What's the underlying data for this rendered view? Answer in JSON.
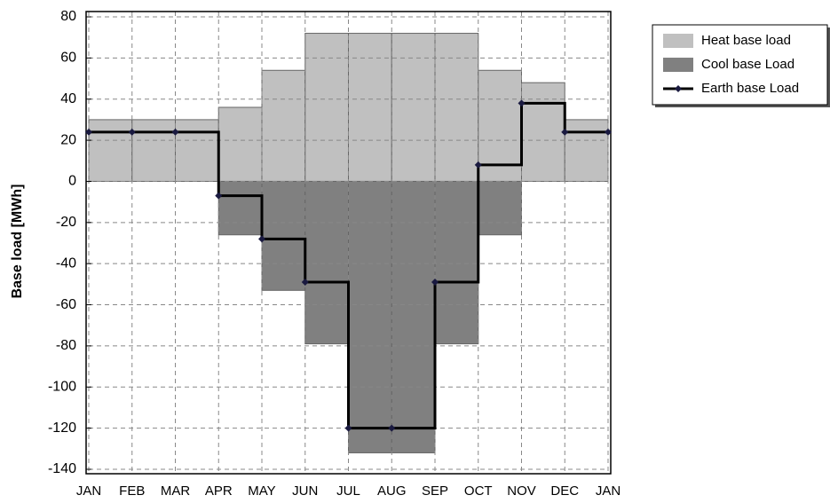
{
  "chart_data": {
    "type": "step",
    "y_label": "Base load [MWh]",
    "categories": [
      "JAN",
      "FEB",
      "MAR",
      "APR",
      "MAY",
      "JUN",
      "JUL",
      "AUG",
      "SEP",
      "OCT",
      "NOV",
      "DEC",
      "JAN"
    ],
    "series": [
      {
        "name": "Heat base load",
        "kind": "bar",
        "color": "#c0c0c0",
        "values": [
          30,
          30,
          30,
          36,
          54,
          72,
          72,
          72,
          72,
          54,
          48,
          30,
          null
        ]
      },
      {
        "name": "Cool base Load",
        "kind": "bar",
        "color": "#808080",
        "values": [
          0,
          0,
          0,
          -26,
          -53,
          -79,
          -132,
          -132,
          -79,
          -26,
          0,
          0,
          null
        ]
      },
      {
        "name": "Earth base Load",
        "kind": "step-line",
        "color": "#000000",
        "values": [
          24,
          24,
          24,
          -7,
          -28,
          -49,
          -120,
          -120,
          -49,
          8,
          38,
          24,
          24
        ]
      }
    ],
    "ylim": [
      -140,
      80
    ],
    "yticks": [
      -140,
      -120,
      -100,
      -80,
      -60,
      -40,
      -20,
      0,
      20,
      40,
      60,
      80
    ],
    "grid": true,
    "legend": "top-right"
  }
}
